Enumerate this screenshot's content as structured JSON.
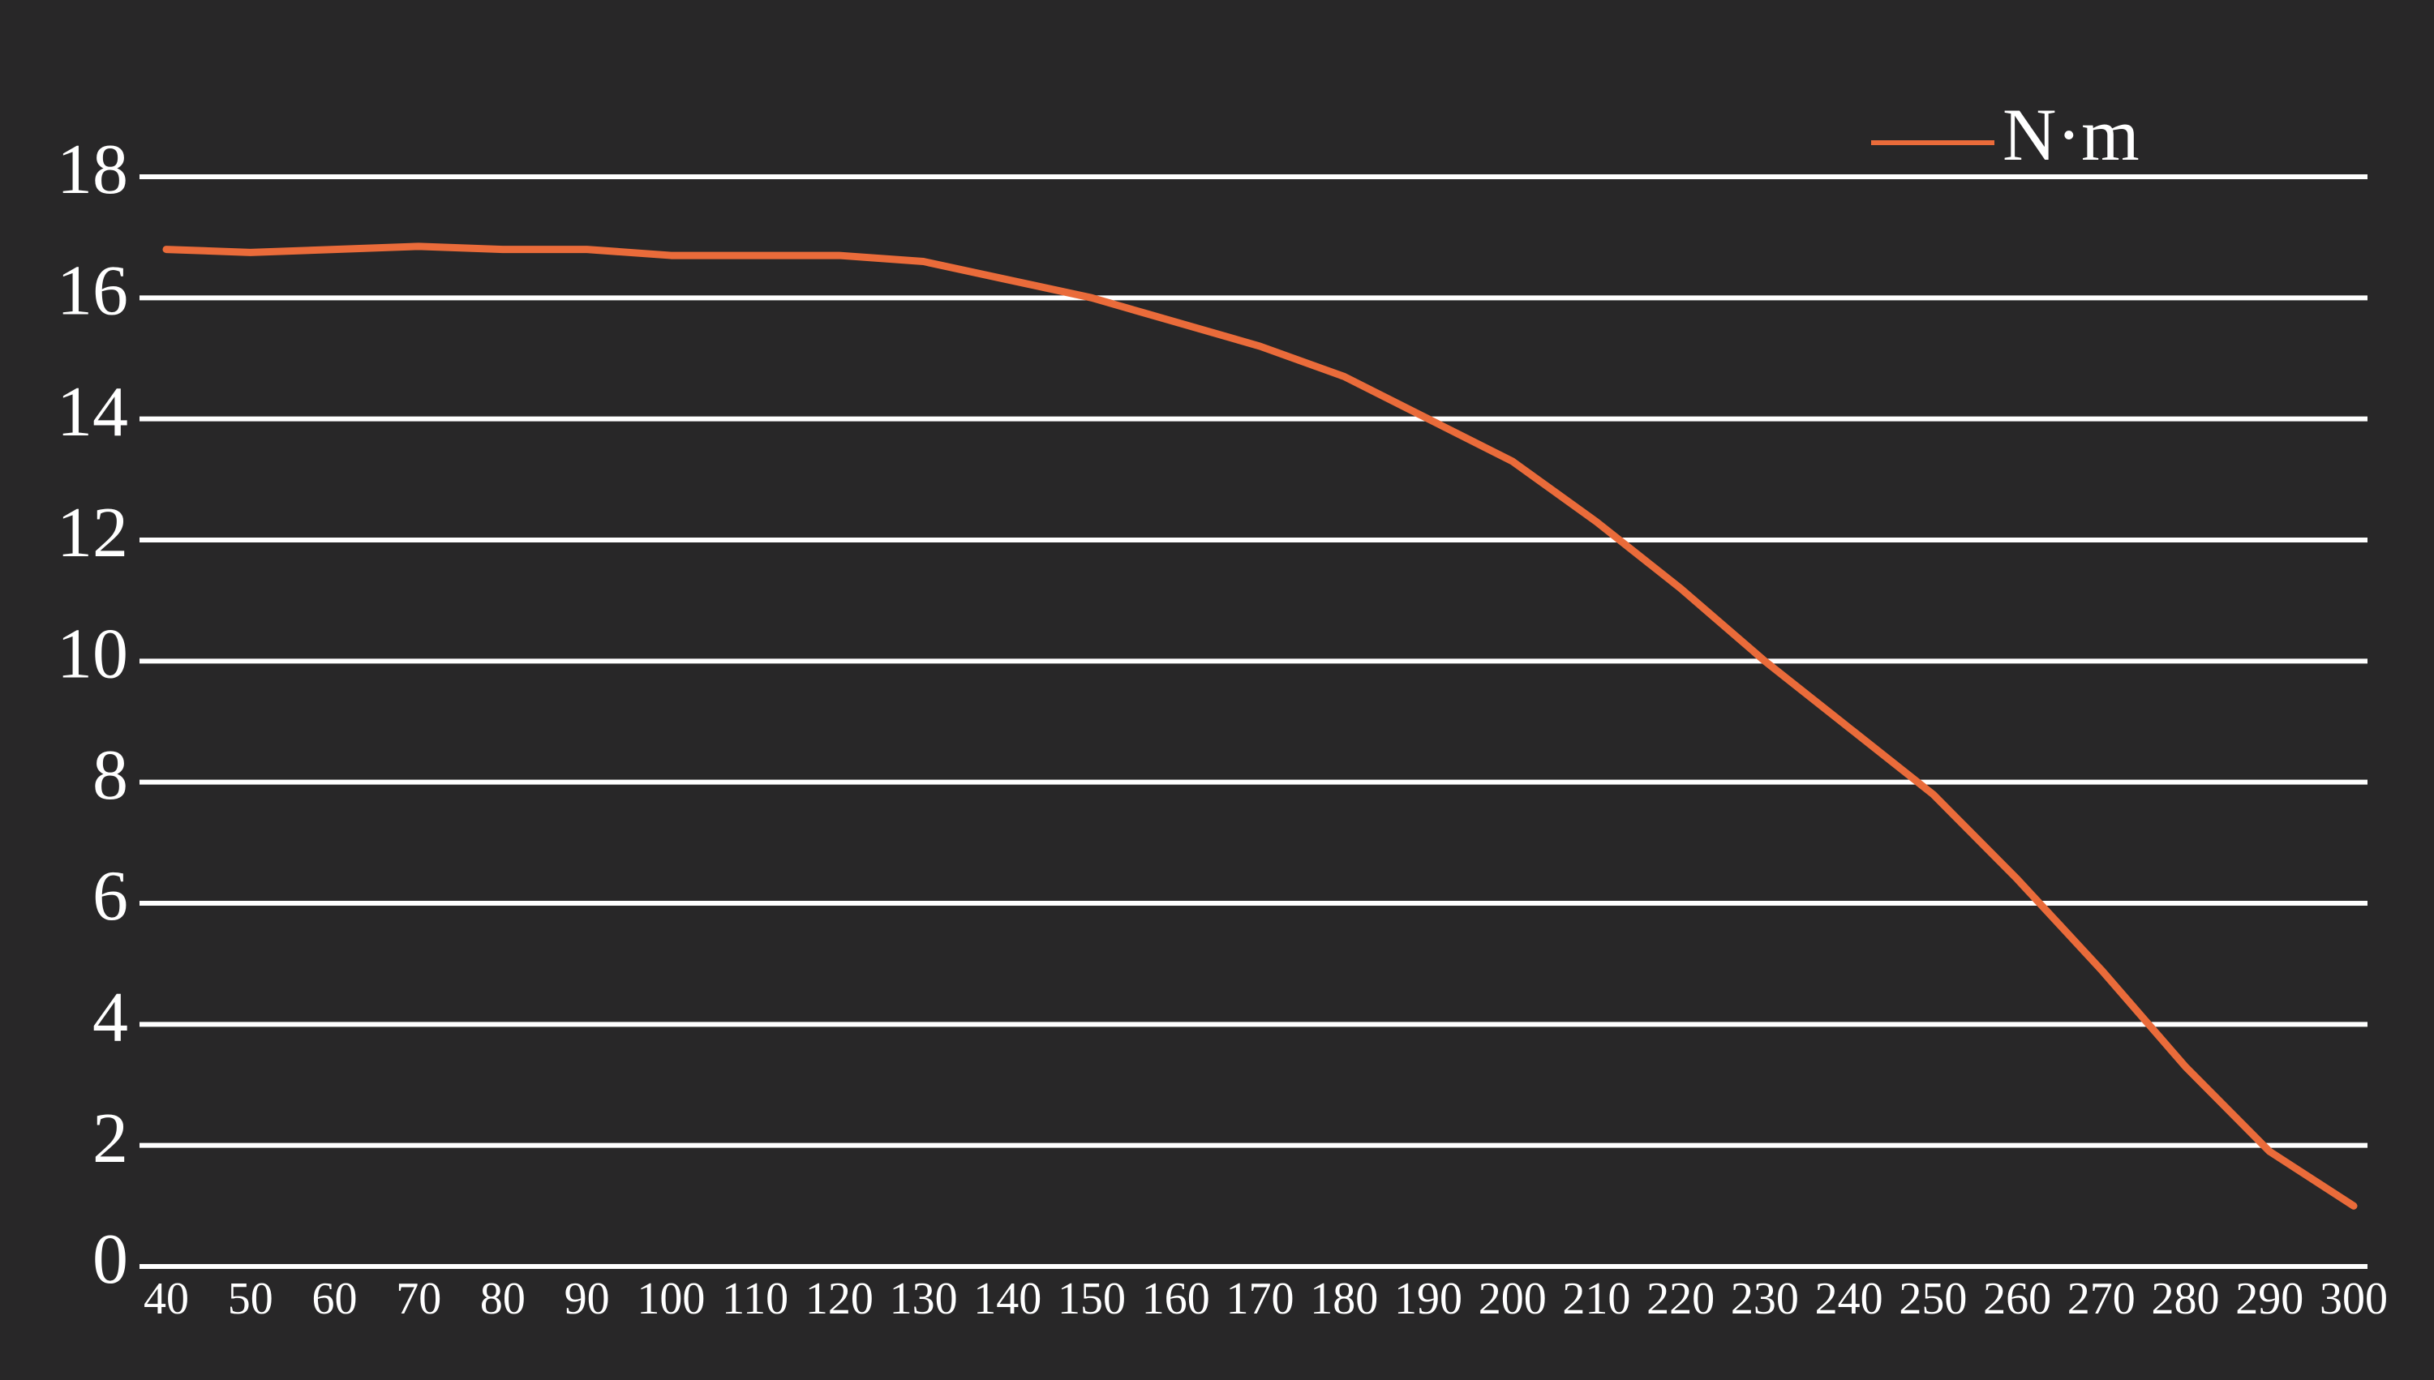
{
  "chart_data": {
    "type": "line",
    "categories": [
      "40",
      "50",
      "60",
      "70",
      "80",
      "90",
      "100",
      "110",
      "120",
      "130",
      "140",
      "150",
      "160",
      "170",
      "180",
      "190",
      "200",
      "210",
      "220",
      "230",
      "240",
      "250",
      "260",
      "270",
      "280",
      "290",
      "300"
    ],
    "series": [
      {
        "name": "N·m",
        "color": "#ea6b3a",
        "values": [
          16.8,
          16.75,
          16.8,
          16.85,
          16.8,
          16.8,
          16.7,
          16.7,
          16.7,
          16.6,
          16.3,
          16.0,
          15.6,
          15.2,
          14.7,
          14.0,
          13.3,
          12.3,
          11.2,
          10.0,
          8.9,
          7.8,
          6.4,
          4.9,
          3.3,
          1.9,
          1.0
        ]
      }
    ],
    "ylim": [
      0,
      18
    ],
    "yticks": [
      0,
      2,
      4,
      6,
      8,
      10,
      12,
      14,
      16,
      18
    ],
    "grid": true,
    "legend": "top-right"
  }
}
